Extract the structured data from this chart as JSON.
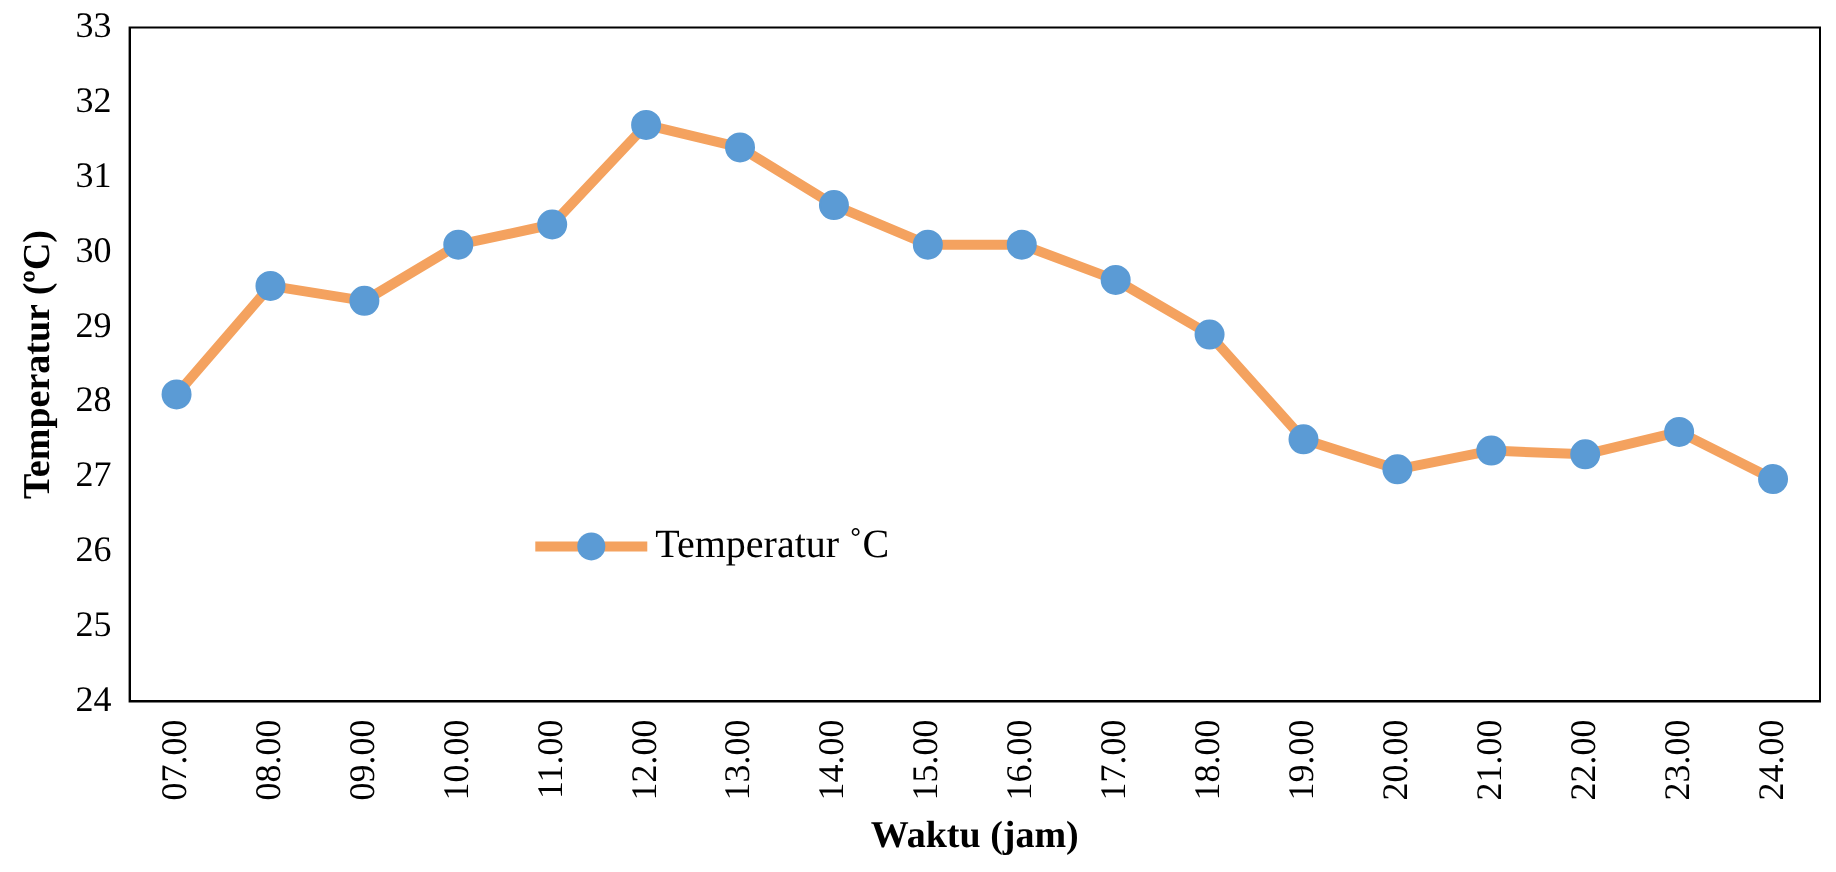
{
  "chart_data": {
    "type": "line",
    "xlabel": "Waktu (jam)",
    "ylabel": "Temperatur (ºC)",
    "categories": [
      "07.00",
      "08.00",
      "09.00",
      "10.00",
      "11.00",
      "12.00",
      "13.00",
      "14.00",
      "15.00",
      "16.00",
      "17.00",
      "18.00",
      "19.00",
      "20.00",
      "21.00",
      "22.00",
      "23.00",
      "24.00"
    ],
    "series": [
      {
        "name": "Temperatur ˚C",
        "color": "#f4a25f",
        "colors": [
          "#5b9bd5",
          "#5b9bd5",
          "#5b9bd5",
          "#5b9bd5",
          "#5b9bd5",
          "#5b9bd5",
          "#5b9bd5",
          "#5b9bd5",
          "#5b9bd5",
          "#5b9bd5",
          "#5b9bd5",
          "#5b9bd5",
          "#5b9bd5",
          "#5b9bd5",
          "#5b9bd5",
          "#5b9bd5",
          "#5b9bd5",
          "#5b9bd5"
        ],
        "values": [
          28.1,
          29.55,
          29.35,
          30.1,
          30.37,
          31.7,
          31.4,
          30.63,
          30.1,
          30.1,
          29.63,
          28.9,
          27.5,
          27.1,
          27.35,
          27.3,
          27.6,
          26.97
        ]
      }
    ],
    "ylim": [
      24,
      33
    ],
    "yticks": [
      24,
      25,
      26,
      27,
      28,
      29,
      30,
      31,
      32,
      33
    ],
    "grid": false,
    "legend": "center left",
    "marker": "circle",
    "line_style": "solid"
  }
}
